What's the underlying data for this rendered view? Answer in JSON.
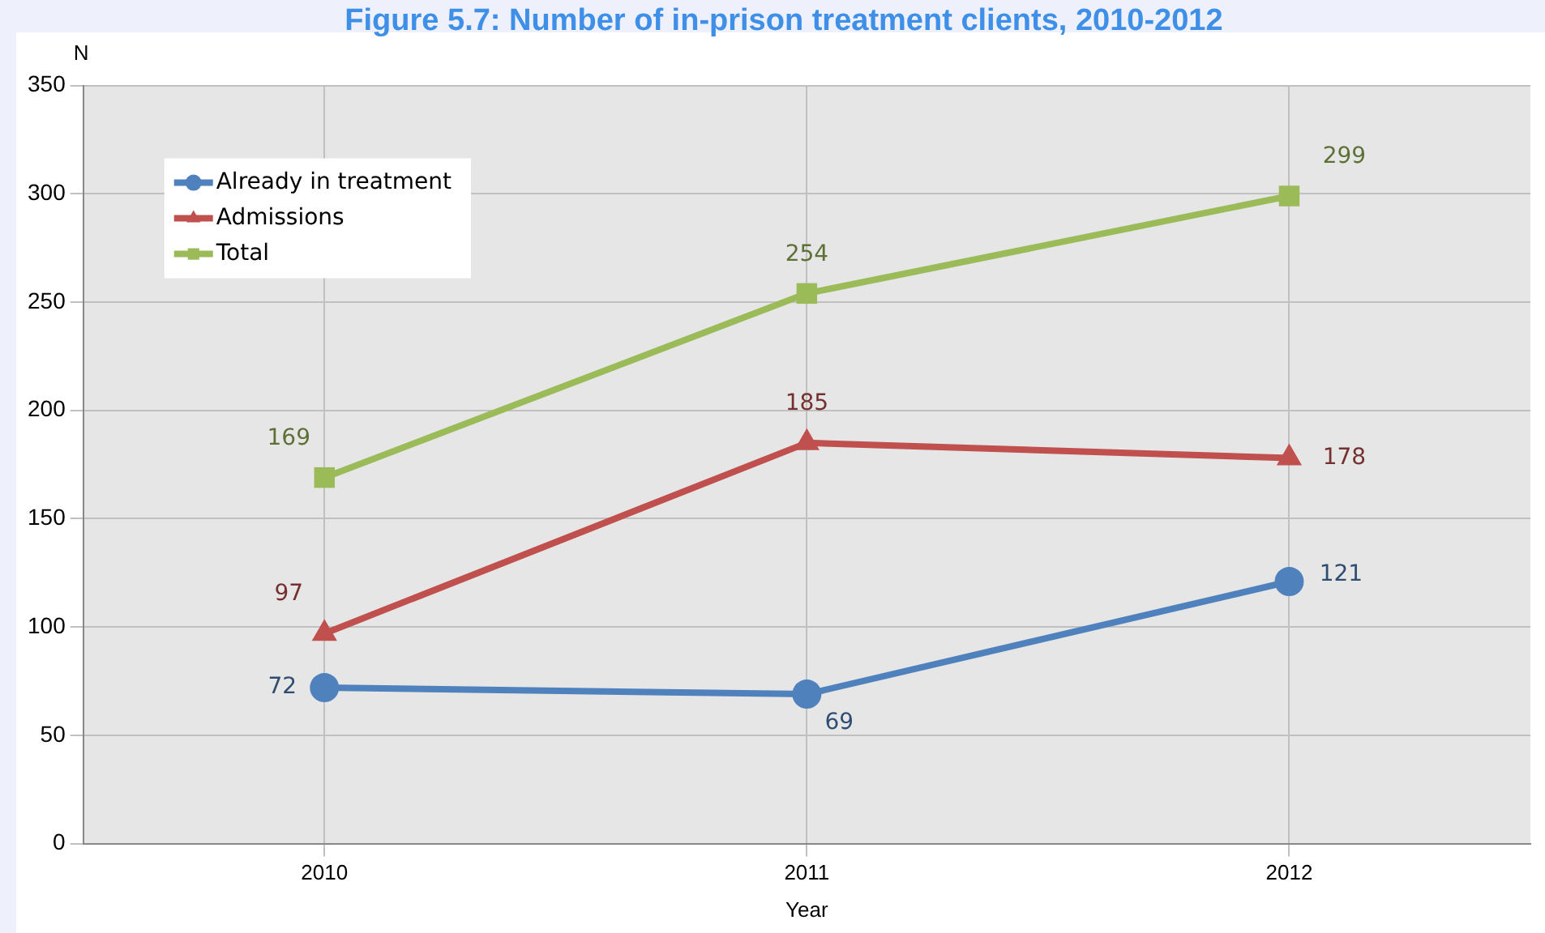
{
  "chart_data": {
    "type": "line",
    "title": "Figure 5.7: Number of in-prison treatment clients, 2010-2012",
    "xlabel": "Year",
    "ylabel": "N",
    "categories": [
      "2010",
      "2011",
      "2012"
    ],
    "series": [
      {
        "name": "Already in treatment",
        "color": "#4f81bd",
        "values": [
          72,
          69,
          121
        ],
        "marker": "circle"
      },
      {
        "name": "Admissions",
        "color": "#c0504d",
        "values": [
          97,
          185,
          178
        ],
        "marker": "triangle"
      },
      {
        "name": "Total",
        "color": "#9bbb59",
        "values": [
          169,
          254,
          299
        ],
        "marker": "square"
      }
    ],
    "ylim": [
      0,
      350
    ],
    "yticks": [
      0,
      50,
      100,
      150,
      200,
      250,
      300,
      350
    ],
    "grid": true,
    "legend": "top left",
    "data_labels": true,
    "line_style": "solid"
  }
}
